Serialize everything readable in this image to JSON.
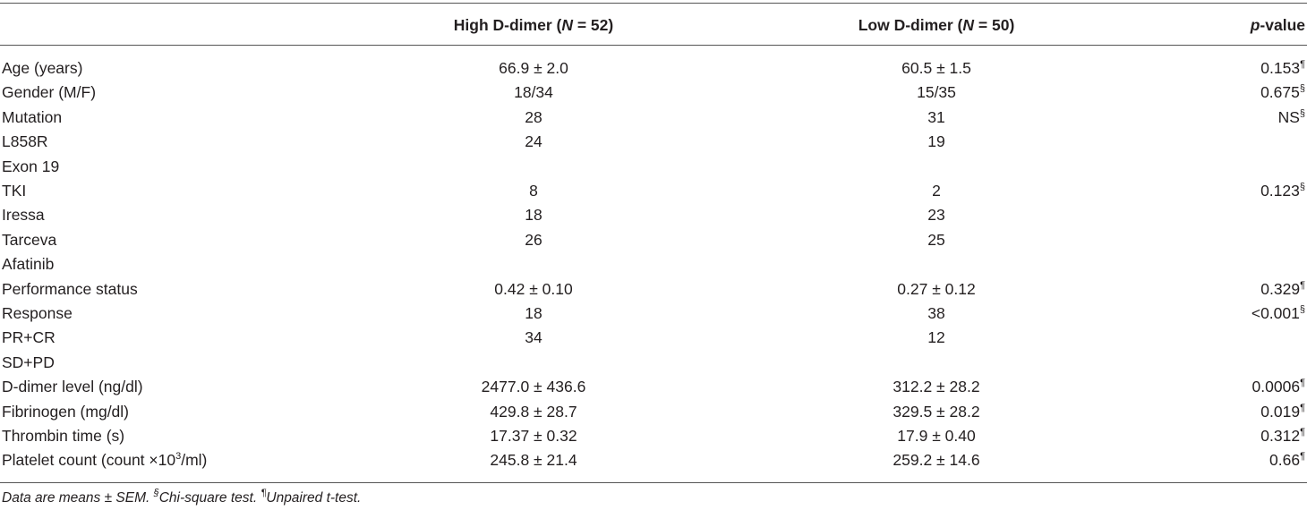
{
  "table": {
    "header": [
      [
        {
          "t": "High D-dimer ("
        },
        {
          "em": "N"
        },
        {
          "t": " = 52)"
        }
      ],
      [
        {
          "t": "Low D-dimer ("
        },
        {
          "em": "N"
        },
        {
          "t": " = 50)"
        }
      ],
      [
        {
          "em": "p"
        },
        {
          "t": "-value"
        }
      ]
    ],
    "rows": [
      [
        "Age (years)",
        "66.9 ± 2.0",
        "60.5 ± 1.5",
        [
          {
            "t": "0.153"
          },
          {
            "sup": "¶"
          }
        ]
      ],
      [
        "Gender (M/F)",
        "18/34",
        "15/35",
        [
          {
            "t": "0.675"
          },
          {
            "sup": "§"
          }
        ]
      ],
      [
        "Mutation",
        "28",
        "31",
        [
          {
            "t": "NS"
          },
          {
            "sup": "§"
          }
        ]
      ],
      [
        "L858R",
        "24",
        "19"
      ],
      [
        "Exon 19"
      ],
      [
        "TKI",
        "8",
        "2",
        [
          {
            "t": "0.123"
          },
          {
            "sup": "§"
          }
        ]
      ],
      [
        "Iressa",
        "18",
        "23"
      ],
      [
        "Tarceva",
        "26",
        "25"
      ],
      [
        "Afatinib"
      ],
      [
        "Performance status",
        "0.42 ± 0.10",
        "0.27 ± 0.12",
        [
          {
            "t": "0.329"
          },
          {
            "sup": "¶"
          }
        ]
      ],
      [
        "Response",
        "18",
        "38",
        [
          {
            "t": "<0.001"
          },
          {
            "sup": "§"
          }
        ]
      ],
      [
        "PR+CR",
        "34",
        "12"
      ],
      [
        "SD+PD"
      ],
      [
        "D-dimer level (ng/dl)",
        "2477.0 ± 436.6",
        "312.2 ± 28.2",
        [
          {
            "t": "0.0006"
          },
          {
            "sup": "¶"
          }
        ]
      ],
      [
        "Fibrinogen (mg/dl)",
        "429.8 ± 28.7",
        "329.5 ± 28.2",
        [
          {
            "t": "0.019"
          },
          {
            "sup": "¶"
          }
        ]
      ],
      [
        "Thrombin time (s)",
        "17.37 ± 0.32",
        "17.9 ± 0.40",
        [
          {
            "t": "0.312"
          },
          {
            "sup": "¶"
          }
        ]
      ],
      [
        [
          {
            "t": "Platelet count (count ×10"
          },
          {
            "sup": "3"
          },
          {
            "t": "/ml)"
          }
        ],
        "245.8 ± 21.4",
        "259.2 ± 14.6",
        [
          {
            "t": "0.66"
          },
          {
            "sup": "¶"
          }
        ]
      ]
    ],
    "footnote": [
      {
        "t": "Data are means ± SEM. "
      },
      {
        "sup": "§"
      },
      {
        "t": "Chi-square test. "
      },
      {
        "sup": "¶"
      },
      {
        "t": "Unpaired t-test."
      }
    ]
  }
}
